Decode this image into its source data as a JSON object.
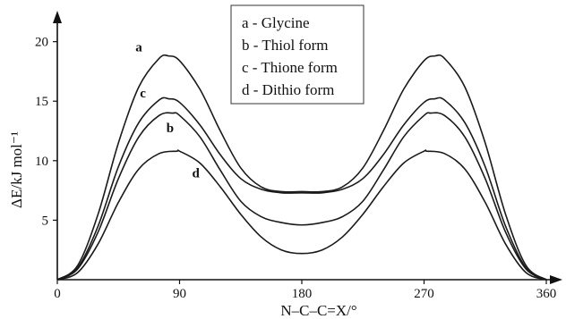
{
  "chart_data": {
    "type": "line",
    "title": "",
    "xlabel": "N–C–C=X/°",
    "ylabel": "ΔE/kJ mol⁻¹",
    "xlim": [
      0,
      360
    ],
    "ylim": [
      0,
      22
    ],
    "xticks": [
      "0",
      "90",
      "180",
      "270",
      "360"
    ],
    "yticks": [
      "5",
      "10",
      "15",
      "20"
    ],
    "grid": false,
    "legend_position": "top-center",
    "legend": [
      "a - Glycine",
      "b - Thiol form",
      "c - Thione form",
      "d - Dithio form"
    ],
    "series": [
      {
        "name": "a",
        "x": [
          0,
          15,
          30,
          45,
          60,
          75,
          82,
          90,
          105,
          120,
          135,
          150,
          165,
          180,
          195,
          210,
          225,
          240,
          255,
          270,
          278,
          285,
          300,
          315,
          330,
          345,
          360
        ],
        "y": [
          0,
          1.2,
          5.5,
          11.5,
          16.2,
          18.6,
          18.8,
          18.4,
          16.0,
          12.5,
          9.4,
          7.8,
          7.4,
          7.4,
          7.4,
          7.8,
          9.4,
          12.5,
          16.0,
          18.4,
          18.8,
          18.6,
          16.2,
          11.5,
          5.5,
          1.2,
          0
        ]
      },
      {
        "name": "b",
        "x": [
          0,
          15,
          30,
          45,
          60,
          75,
          85,
          90,
          105,
          120,
          135,
          150,
          165,
          180,
          195,
          210,
          225,
          240,
          255,
          270,
          275,
          285,
          300,
          315,
          330,
          345,
          360
        ],
        "y": [
          0,
          0.9,
          4.0,
          8.5,
          12.0,
          13.8,
          14.0,
          13.8,
          12.0,
          9.2,
          6.6,
          5.3,
          4.8,
          4.6,
          4.8,
          5.3,
          6.6,
          9.2,
          12.0,
          13.8,
          14.0,
          13.8,
          12.0,
          8.5,
          4.0,
          0.9,
          0
        ]
      },
      {
        "name": "c",
        "x": [
          0,
          15,
          30,
          45,
          60,
          75,
          82,
          90,
          105,
          120,
          135,
          150,
          165,
          180,
          195,
          210,
          225,
          240,
          255,
          270,
          278,
          285,
          300,
          315,
          330,
          345,
          360
        ],
        "y": [
          0,
          1.0,
          4.5,
          9.5,
          13.2,
          15.1,
          15.2,
          14.9,
          13.0,
          10.5,
          8.5,
          7.6,
          7.3,
          7.3,
          7.3,
          7.6,
          8.5,
          10.5,
          13.0,
          14.9,
          15.2,
          15.1,
          13.2,
          9.5,
          4.5,
          1.0,
          0
        ]
      },
      {
        "name": "d",
        "x": [
          0,
          15,
          30,
          45,
          60,
          75,
          88,
          90,
          105,
          120,
          135,
          150,
          165,
          180,
          195,
          210,
          225,
          240,
          255,
          270,
          272,
          285,
          300,
          315,
          330,
          345,
          360
        ],
        "y": [
          0,
          0.6,
          3.0,
          6.5,
          9.3,
          10.6,
          10.8,
          10.8,
          9.8,
          7.8,
          5.5,
          3.6,
          2.5,
          2.2,
          2.5,
          3.6,
          5.5,
          7.8,
          9.8,
          10.8,
          10.8,
          10.6,
          9.3,
          6.5,
          3.0,
          0.6,
          0
        ]
      }
    ]
  }
}
